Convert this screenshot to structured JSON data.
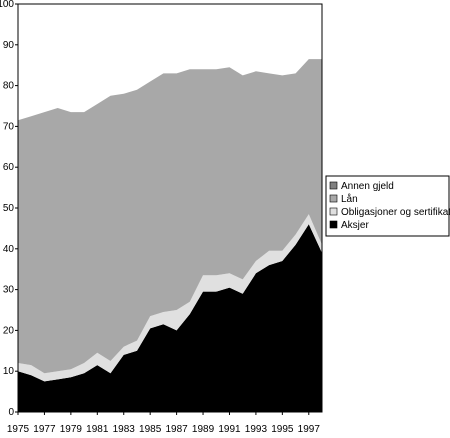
{
  "chart_data": {
    "type": "area",
    "stacked": true,
    "x": [
      1975,
      1976,
      1977,
      1978,
      1979,
      1980,
      1981,
      1982,
      1983,
      1984,
      1985,
      1986,
      1987,
      1988,
      1989,
      1990,
      1991,
      1992,
      1993,
      1994,
      1995,
      1996,
      1997,
      1998
    ],
    "xticks": [
      "1975",
      "1977",
      "1979",
      "1981",
      "1983",
      "1985",
      "1987",
      "1989",
      "1991",
      "1993",
      "1995",
      "1997"
    ],
    "ylim": [
      0,
      100
    ],
    "yticks": [
      "0",
      "10",
      "20",
      "30",
      "40",
      "50",
      "60",
      "70",
      "80",
      "90",
      "100"
    ],
    "grid": false,
    "legend_position": "right",
    "series": [
      {
        "name": "Aksjer",
        "color": "#000000",
        "values": [
          10.0,
          9.0,
          7.5,
          8.0,
          8.5,
          9.5,
          11.5,
          9.5,
          14.0,
          15.0,
          20.5,
          21.5,
          20.0,
          24.0,
          29.5,
          29.5,
          30.5,
          29.0,
          34.0,
          36.0,
          37.0,
          41.0,
          46.0,
          39.0
        ]
      },
      {
        "name": "Obligasjoner og sertifikater",
        "color": "#e0e0e0",
        "values": [
          2.0,
          2.5,
          2.0,
          2.0,
          2.0,
          2.5,
          3.0,
          3.0,
          2.0,
          2.5,
          3.0,
          3.0,
          5.0,
          3.0,
          4.0,
          4.0,
          3.5,
          3.5,
          3.0,
          3.5,
          2.5,
          2.5,
          2.5,
          2.0
        ]
      },
      {
        "name": "Lån",
        "color": "#a8a8a8",
        "values": [
          59.5,
          61.0,
          64.0,
          64.5,
          63.0,
          61.5,
          61.0,
          65.0,
          62.0,
          61.5,
          57.5,
          58.5,
          58.0,
          57.0,
          50.5,
          50.5,
          50.5,
          50.0,
          46.5,
          43.5,
          43.0,
          39.5,
          38.0,
          45.5
        ]
      },
      {
        "name": "Annen gjeld",
        "color": "#808080",
        "values": [
          0,
          0,
          0,
          0,
          0,
          0,
          0,
          0,
          0,
          0,
          0,
          0,
          0,
          0,
          0,
          0,
          0,
          0,
          0,
          0,
          0,
          0,
          0,
          0
        ]
      }
    ]
  }
}
